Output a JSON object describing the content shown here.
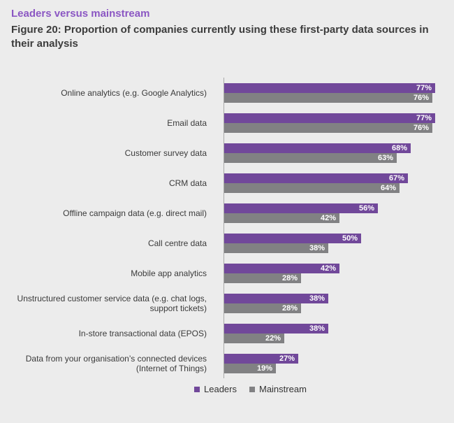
{
  "header": {
    "eyebrow": "Leaders versus mainstream",
    "title": "Figure 20: Proportion of companies currently using these first-party data sources in their analysis"
  },
  "colors": {
    "background": "#ececec",
    "leaders_bar": "#71489a",
    "mainstream_bar": "#818183",
    "eyebrow_text": "#8b57c3",
    "title_text": "#3c3c3c",
    "category_text": "#3a3a3a",
    "value_text": "#ffffff",
    "axis_line": "#a9a9a9"
  },
  "chart_data": {
    "type": "bar",
    "orientation": "horizontal",
    "title": "Figure 20: Proportion of companies currently using these first-party data sources in their analysis",
    "xlabel": "",
    "ylabel": "",
    "xlim": [
      0,
      80
    ],
    "grid": false,
    "legend_position": "bottom-center",
    "value_suffix": "%",
    "categories": [
      "Online analytics (e.g. Google Analytics)",
      "Email data",
      "Customer survey data",
      "CRM data",
      "Offline campaign data (e.g. direct mail)",
      "Call centre data",
      "Mobile app analytics",
      "Unstructured customer service data (e.g. chat logs,\nsupport tickets)",
      "In-store transactional data (EPOS)",
      "Data from your organisation’s connected devices\n(Internet of Things)"
    ],
    "series": [
      {
        "name": "Leaders",
        "color": "#71489a",
        "values": [
          77,
          77,
          68,
          67,
          56,
          50,
          42,
          38,
          38,
          27
        ]
      },
      {
        "name": "Mainstream",
        "color": "#818183",
        "values": [
          76,
          76,
          63,
          64,
          42,
          38,
          28,
          28,
          22,
          19
        ]
      }
    ]
  }
}
